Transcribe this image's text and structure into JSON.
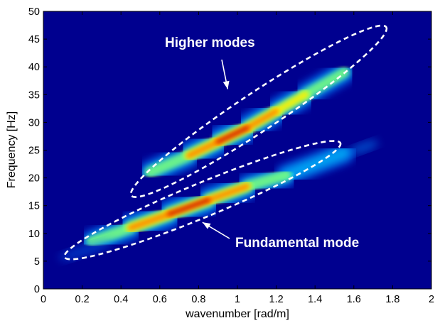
{
  "chart_data": {
    "type": "heatmap",
    "title": "",
    "xlabel": "wavenumber [rad/m]",
    "ylabel": "Frequency [Hz]",
    "xlim": [
      0,
      2
    ],
    "ylim": [
      0,
      50
    ],
    "xticks": [
      "0",
      "0.2",
      "0.4",
      "0.6",
      "0.8",
      "1",
      "1.2",
      "1.4",
      "1.6",
      "1.8",
      "2"
    ],
    "yticks": [
      "0",
      "5",
      "10",
      "15",
      "20",
      "25",
      "30",
      "35",
      "40",
      "45",
      "50"
    ],
    "colormap": "jet",
    "background_color": "#00008f",
    "energy_ridges": [
      {
        "name": "Higher modes",
        "points": [
          {
            "k": 0.55,
            "f": 21,
            "amp": 0.55
          },
          {
            "k": 0.75,
            "f": 24,
            "amp": 0.8
          },
          {
            "k": 0.9,
            "f": 26.5,
            "amp": 1.0
          },
          {
            "k": 1.05,
            "f": 29,
            "amp": 0.9
          },
          {
            "k": 1.2,
            "f": 32,
            "amp": 0.75
          },
          {
            "k": 1.35,
            "f": 35,
            "amp": 0.6
          },
          {
            "k": 1.55,
            "f": 39,
            "amp": 0.45
          }
        ]
      },
      {
        "name": "Fundamental mode",
        "points": [
          {
            "k": 0.25,
            "f": 8.5,
            "amp": 0.55
          },
          {
            "k": 0.45,
            "f": 11,
            "amp": 0.85
          },
          {
            "k": 0.65,
            "f": 13.5,
            "amp": 1.0
          },
          {
            "k": 0.85,
            "f": 16,
            "amp": 0.9
          },
          {
            "k": 1.05,
            "f": 18.5,
            "amp": 0.75
          },
          {
            "k": 1.25,
            "f": 20.5,
            "amp": 0.55
          },
          {
            "k": 1.55,
            "f": 24.5,
            "amp": 0.4
          }
        ]
      }
    ],
    "annotations": [
      {
        "text": "Higher modes",
        "target": {
          "k": 0.95,
          "f": 36
        }
      },
      {
        "text": "Fundamental mode",
        "target": {
          "k": 0.82,
          "f": 12
        }
      }
    ],
    "enclosing_ellipses": [
      {
        "label": "Higher modes",
        "center": {
          "k": 1.11,
          "f": 32
        }
      },
      {
        "label": "Fundamental mode",
        "center": {
          "k": 0.82,
          "f": 16
        }
      }
    ]
  }
}
